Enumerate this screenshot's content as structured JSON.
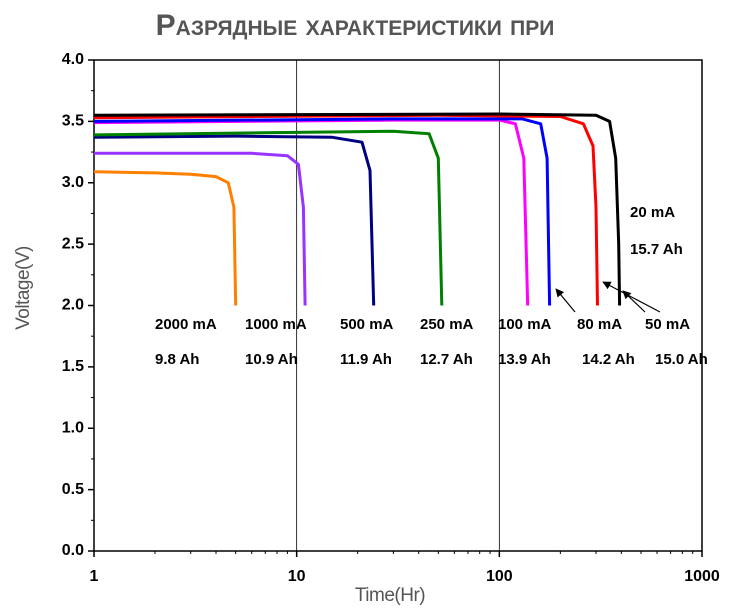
{
  "chart_data": {
    "type": "line",
    "title": "Разрядные характеристики при",
    "x_label": "Time(Hr)",
    "y_label": "Voltage(V)",
    "log_x": true,
    "xlim": [
      1,
      1000
    ],
    "xticks": [
      1,
      10,
      100,
      1000
    ],
    "ylim": [
      0,
      4
    ],
    "yticks": [
      {
        "value": 0,
        "label": "0.0"
      },
      0.5,
      {
        "value": 1,
        "label": "1.0"
      },
      1.5,
      {
        "value": 2,
        "label": "2.0"
      },
      2.5,
      {
        "value": 3,
        "label": "3.0"
      },
      3.5,
      {
        "value": 4,
        "label": "4.0"
      }
    ],
    "grid_x": true,
    "series": [
      {
        "name": "2000 mA",
        "capacity": "9.8 Ah",
        "color": "#ff8000",
        "x": [
          1,
          2,
          3,
          4,
          4.6,
          4.9,
          5.0
        ],
        "y": [
          3.09,
          3.08,
          3.07,
          3.05,
          3.0,
          2.8,
          2.0
        ]
      },
      {
        "name": "1000 mA",
        "capacity": "10.9 Ah",
        "color": "#9933ff",
        "x": [
          1,
          3,
          6,
          9,
          10.2,
          10.8,
          11
        ],
        "y": [
          3.24,
          3.24,
          3.24,
          3.22,
          3.15,
          2.8,
          2.0
        ]
      },
      {
        "name": "500 mA",
        "capacity": "11.9 Ah",
        "color": "#000080",
        "x": [
          1,
          5,
          15,
          21,
          23,
          24
        ],
        "y": [
          3.37,
          3.38,
          3.37,
          3.33,
          3.1,
          2.0
        ]
      },
      {
        "name": "250 mA",
        "capacity": "12.7 Ah",
        "color": "#008000",
        "x": [
          1,
          10,
          30,
          45,
          50,
          52
        ],
        "y": [
          3.39,
          3.41,
          3.42,
          3.4,
          3.2,
          2.0
        ]
      },
      {
        "name": "100 mA",
        "capacity": "13.9 Ah",
        "color": "#ff00ff",
        "x": [
          1,
          30,
          100,
          120,
          132,
          138
        ],
        "y": [
          3.49,
          3.51,
          3.51,
          3.48,
          3.2,
          2.0
        ]
      },
      {
        "name": "80 mA",
        "capacity": "14.2 Ah",
        "color": "#0000ff",
        "x": [
          1,
          30,
          130,
          160,
          172,
          177
        ],
        "y": [
          3.5,
          3.52,
          3.52,
          3.48,
          3.2,
          2.0
        ]
      },
      {
        "name": "50 mA",
        "capacity": "15.0 Ah",
        "color": "#ff0000",
        "x": [
          1,
          50,
          200,
          260,
          290,
          300,
          305
        ],
        "y": [
          3.53,
          3.55,
          3.54,
          3.48,
          3.3,
          2.8,
          2.0
        ]
      },
      {
        "name": "20 mA",
        "capacity": "15.7 Ah",
        "color": "#000000",
        "x": [
          1,
          100,
          300,
          350,
          375,
          388,
          392
        ],
        "y": [
          3.55,
          3.56,
          3.55,
          3.5,
          3.2,
          2.5,
          2.0
        ]
      }
    ]
  }
}
